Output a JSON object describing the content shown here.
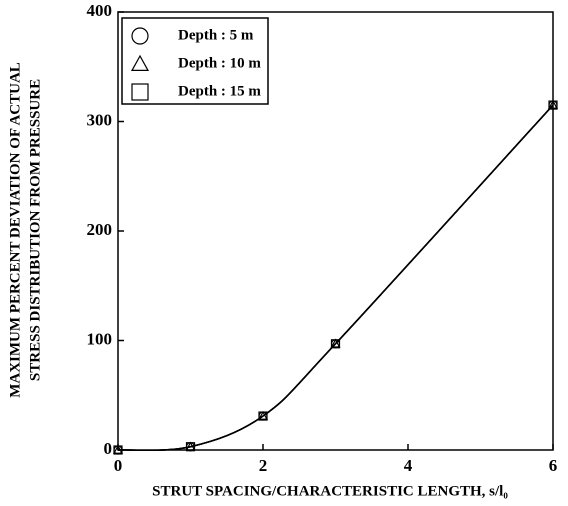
{
  "chart_data": {
    "type": "line",
    "x_label": "STRUT SPACING/CHARACTERISTIC LENGTH, s/l₀",
    "y_label": [
      "MAXIMUM PERCENT DEVIATION OF ACTUAL",
      "STRESS DISTRIBUTION FROM PRESSURE"
    ],
    "x": [
      0,
      1,
      2,
      3,
      6
    ],
    "series": [
      {
        "name": "Depth : 5 m",
        "marker": "circle",
        "color": "#000000",
        "values": [
          0,
          3,
          31,
          97,
          315
        ]
      },
      {
        "name": "Depth : 10 m",
        "marker": "triangle",
        "color": "#000000",
        "values": [
          0,
          3,
          31,
          97,
          315
        ]
      },
      {
        "name": "Depth : 15 m",
        "marker": "square",
        "color": "#000000",
        "values": [
          0,
          3,
          31,
          97,
          315
        ]
      }
    ],
    "xlim": [
      0,
      6
    ],
    "xticks": [
      0,
      2,
      4,
      6
    ],
    "ylim": [
      0,
      400
    ],
    "yticks": [
      0,
      100,
      200,
      300,
      400
    ],
    "grid": false,
    "legend": "upper left"
  }
}
